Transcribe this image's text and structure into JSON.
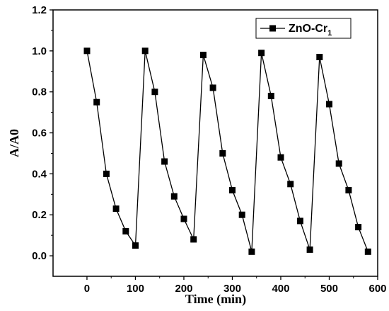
{
  "chart_data": {
    "type": "line",
    "title": "",
    "xlabel": "Time (min)",
    "ylabel": "A/A0",
    "xlim": [
      -70,
      600
    ],
    "ylim": [
      -0.1,
      1.2
    ],
    "xticks": [
      0,
      100,
      200,
      300,
      400,
      500,
      600
    ],
    "yticks": [
      0.0,
      0.2,
      0.4,
      0.6,
      0.8,
      1.0,
      1.2
    ],
    "xtick_labels": [
      "0",
      "100",
      "200",
      "300",
      "400",
      "500",
      "600"
    ],
    "ytick_labels": [
      "0.0",
      "0.2",
      "0.4",
      "0.6",
      "0.8",
      "1.0",
      "1.2"
    ],
    "grid": false,
    "legend_position": "top-right",
    "series": [
      {
        "name": "ZnO-Cr",
        "name_subscript": "1",
        "color": "#000000",
        "marker": "square",
        "x": [
          0,
          20,
          40,
          60,
          80,
          100,
          120,
          140,
          160,
          180,
          200,
          220,
          240,
          260,
          280,
          300,
          320,
          340,
          360,
          380,
          400,
          420,
          440,
          460,
          480,
          500,
          520,
          540,
          560,
          580
        ],
        "y": [
          1.0,
          0.75,
          0.4,
          0.23,
          0.12,
          0.05,
          1.0,
          0.8,
          0.46,
          0.29,
          0.18,
          0.08,
          0.98,
          0.82,
          0.5,
          0.32,
          0.2,
          0.02,
          0.99,
          0.78,
          0.48,
          0.35,
          0.17,
          0.03,
          0.97,
          0.74,
          0.45,
          0.32,
          0.14,
          0.02
        ]
      }
    ]
  }
}
